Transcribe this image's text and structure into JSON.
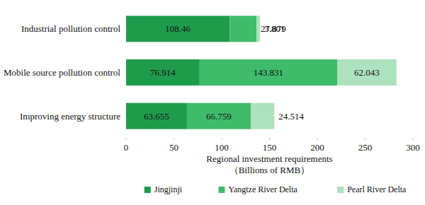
{
  "chart_data": {
    "type": "bar",
    "orientation": "horizontal",
    "stacked": true,
    "data_labels": true,
    "categories": [
      "Industrial pollution control",
      "Mobile source pollution control",
      "Improving energy structure"
    ],
    "series": [
      {
        "name": "Jingjinji",
        "color": "#1e9c4c",
        "values": [
          108.46,
          76.914,
          63.655
        ]
      },
      {
        "name": "Yangtze River Delta",
        "color": "#3fbb6c",
        "values": [
          27.879,
          143.831,
          66.759
        ]
      },
      {
        "name": "Pearl River Delta",
        "color": "#ace2bd",
        "values": [
          3.801,
          62.043,
          24.514
        ]
      }
    ],
    "x_label": "Regional investment requirements",
    "x_unit": "（Billions of RMB）",
    "xlim": [
      0,
      300
    ],
    "xticks": [
      0,
      50,
      100,
      150,
      200,
      250,
      300
    ],
    "grid": false,
    "legend": "bottom"
  }
}
